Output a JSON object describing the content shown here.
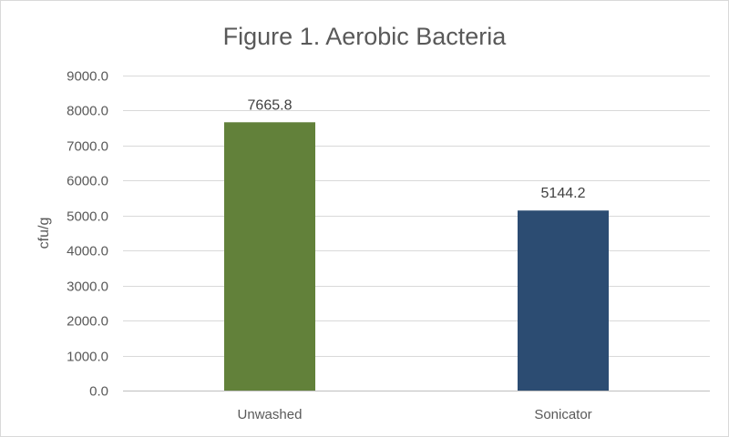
{
  "chart_data": {
    "type": "bar",
    "title": "Figure 1. Aerobic Bacteria",
    "xlabel": "",
    "ylabel": "cfu/g",
    "categories": [
      "Unwashed",
      "Sonicator"
    ],
    "values": [
      7665.8,
      5144.2
    ],
    "data_labels": [
      "7665.8",
      "5144.2"
    ],
    "bar_colors": [
      "#62813a",
      "#2c4c72"
    ],
    "ylim": [
      0,
      9000
    ],
    "y_ticks": [
      0,
      1000,
      2000,
      3000,
      4000,
      5000,
      6000,
      7000,
      8000,
      9000
    ],
    "y_tick_labels": [
      "0.0",
      "1000.0",
      "2000.0",
      "3000.0",
      "4000.0",
      "5000.0",
      "6000.0",
      "7000.0",
      "8000.0",
      "9000.0"
    ],
    "grid": true,
    "legend": "none"
  }
}
